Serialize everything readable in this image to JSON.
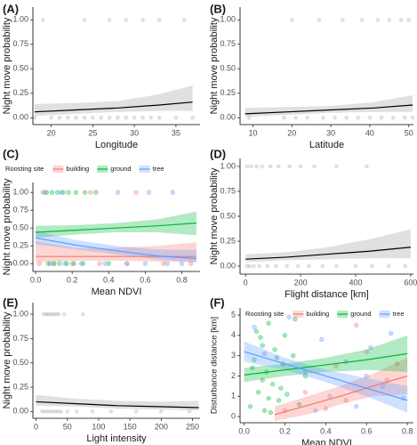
{
  "chart_data": [
    {
      "type": "line",
      "panel_label": "(A)",
      "x_label": "Longitude",
      "y_label": "Night move probability",
      "xlim": [
        17.8,
        37.9
      ],
      "xticks": [
        20,
        25,
        30,
        35
      ],
      "ylim": [
        -0.07,
        1.13
      ],
      "yticks": [
        {
          "value": 0,
          "label": "0.00"
        },
        {
          "value": 0.25,
          "label": "0.25"
        },
        {
          "value": 0.5,
          "label": "0.50"
        },
        {
          "value": 0.75,
          "label": "0.75"
        },
        {
          "value": 1,
          "label": "1.00"
        }
      ],
      "series": [
        {
          "color": "#000000",
          "band_color": "#999999",
          "x": [
            18,
            23,
            28,
            33,
            37
          ],
          "values": [
            0.06,
            0.08,
            0.1,
            0.13,
            0.16
          ],
          "lower": [
            0.02,
            0.04,
            0.06,
            0.07,
            0.07
          ],
          "upper": [
            0.14,
            0.15,
            0.17,
            0.24,
            0.33
          ],
          "point_x": [
            19,
            24,
            27,
            29,
            31,
            33,
            36,
            18,
            20,
            21,
            22,
            23,
            24,
            25,
            26,
            27,
            28,
            29,
            30,
            31,
            32,
            33,
            35,
            37
          ],
          "point_y": [
            1,
            1,
            1,
            1,
            1,
            1,
            1,
            0,
            0,
            0,
            0,
            0,
            0,
            0,
            0,
            0,
            0,
            0,
            0,
            0,
            0,
            0,
            0,
            0
          ]
        }
      ]
    },
    {
      "type": "line",
      "panel_label": "(B)",
      "x_label": "Latitude",
      "y_label": "Night move probability",
      "xlim": [
        6.7,
        51.2
      ],
      "xticks": [
        10,
        20,
        30,
        40,
        50
      ],
      "ylim": [
        -0.07,
        1.13
      ],
      "yticks": [
        {
          "value": 0,
          "label": "0.00"
        },
        {
          "value": 0.25,
          "label": "0.25"
        },
        {
          "value": 0.5,
          "label": "0.50"
        },
        {
          "value": 0.75,
          "label": "0.75"
        },
        {
          "value": 1,
          "label": "1.00"
        }
      ],
      "series": [
        {
          "color": "#000000",
          "band_color": "#999999",
          "x": [
            8,
            19,
            30,
            41,
            51
          ],
          "values": [
            0.04,
            0.06,
            0.08,
            0.1,
            0.13
          ],
          "lower": [
            0.01,
            0.03,
            0.05,
            0.06,
            0.06
          ],
          "upper": [
            0.1,
            0.11,
            0.12,
            0.16,
            0.23
          ],
          "point_x": [
            20,
            27,
            33,
            38,
            42,
            45,
            48,
            50,
            9,
            18,
            21,
            24,
            28,
            31,
            34,
            37,
            40,
            43,
            46,
            49,
            51
          ],
          "point_y": [
            1,
            1,
            1,
            1,
            1,
            1,
            1,
            1,
            0,
            0,
            0,
            0,
            0,
            0,
            0,
            0,
            0,
            0,
            0,
            0,
            0
          ]
        }
      ]
    },
    {
      "type": "line",
      "panel_label": "(C)",
      "x_label": "Mean NDVI",
      "y_label": "Night move probability",
      "legend_title": "Roosting site",
      "xlim": [
        -0.015,
        0.9
      ],
      "xticks": [
        {
          "value": 0,
          "label": "0.0"
        },
        {
          "value": 0.2,
          "label": "0.2"
        },
        {
          "value": 0.4,
          "label": "0.4"
        },
        {
          "value": 0.6,
          "label": "0.6"
        },
        {
          "value": 0.8,
          "label": "0.8"
        }
      ],
      "ylim": [
        -0.11,
        1.14
      ],
      "yticks": [
        {
          "value": 0,
          "label": "0.00"
        },
        {
          "value": 0.25,
          "label": "0.25"
        },
        {
          "value": 0.5,
          "label": "0.50"
        },
        {
          "value": 0.75,
          "label": "0.75"
        },
        {
          "value": 1,
          "label": "1.00"
        }
      ],
      "series": [
        {
          "name": "building",
          "color": "#F8766D",
          "band_color": "#F8766D",
          "x": [
            0,
            0.22,
            0.44,
            0.66,
            0.88
          ],
          "values": [
            0.1,
            0.1,
            0.1,
            0.1,
            0.1
          ],
          "lower": [
            0.02,
            0.04,
            0.04,
            0.03,
            0.02
          ],
          "upper": [
            0.32,
            0.22,
            0.22,
            0.25,
            0.3
          ],
          "point_x": [
            0.05,
            0.3,
            0.55,
            0.02,
            0.1,
            0.2,
            0.35,
            0.5,
            0.7,
            0.85
          ],
          "point_y": [
            1,
            1,
            1,
            0,
            0,
            0,
            0,
            0,
            0,
            0
          ]
        },
        {
          "name": "ground",
          "color": "#00BA38",
          "band_color": "#00BA38",
          "x": [
            0,
            0.22,
            0.44,
            0.66,
            0.88
          ],
          "values": [
            0.44,
            0.47,
            0.5,
            0.53,
            0.57
          ],
          "lower": [
            0.36,
            0.41,
            0.44,
            0.44,
            0.4
          ],
          "upper": [
            0.53,
            0.54,
            0.57,
            0.62,
            0.73
          ],
          "point_x": [
            0.06,
            0.09,
            0.12,
            0.15,
            0.18,
            0.22,
            0.27,
            0.33,
            0.07,
            0.1,
            0.13,
            0.17,
            0.21,
            0.26,
            0.4
          ],
          "point_y": [
            1,
            1,
            1,
            1,
            1,
            1,
            1,
            1,
            0,
            0,
            0,
            0,
            0,
            0,
            0
          ]
        },
        {
          "name": "tree",
          "color": "#619CFF",
          "band_color": "#619CFF",
          "x": [
            0,
            0.22,
            0.44,
            0.66,
            0.88
          ],
          "values": [
            0.36,
            0.26,
            0.18,
            0.11,
            0.07
          ],
          "lower": [
            0.27,
            0.2,
            0.13,
            0.06,
            0.02
          ],
          "upper": [
            0.46,
            0.33,
            0.25,
            0.2,
            0.19
          ],
          "point_x": [
            0.04,
            0.14,
            0.45,
            0.62,
            0.75,
            0.08,
            0.16,
            0.25,
            0.38,
            0.5,
            0.6,
            0.72,
            0.8
          ],
          "point_y": [
            1,
            1,
            1,
            1,
            1,
            0,
            0,
            0,
            0,
            0,
            0,
            0,
            0
          ]
        }
      ]
    },
    {
      "type": "line",
      "panel_label": "(D)",
      "x_label": "Flight distance [km]",
      "y_label": "Night move probability",
      "xlim": [
        -20,
        610
      ],
      "xticks": [
        0,
        200,
        400,
        600
      ],
      "ylim": [
        -0.08,
        1.08
      ],
      "yticks": [
        {
          "value": 0,
          "label": "0.00"
        },
        {
          "value": 0.25,
          "label": "0.25"
        },
        {
          "value": 0.5,
          "label": "0.50"
        },
        {
          "value": 0.75,
          "label": "0.75"
        },
        {
          "value": 1,
          "label": "1.00"
        }
      ],
      "series": [
        {
          "color": "#000000",
          "band_color": "#999999",
          "x": [
            0,
            150,
            300,
            450,
            600
          ],
          "values": [
            0.07,
            0.09,
            0.12,
            0.15,
            0.19
          ],
          "lower": [
            0.04,
            0.06,
            0.07,
            0.08,
            0.08
          ],
          "upper": [
            0.12,
            0.14,
            0.19,
            0.27,
            0.37
          ],
          "point_x": [
            5,
            20,
            40,
            60,
            90,
            120,
            160,
            200,
            250,
            330,
            440,
            5,
            15,
            30,
            50,
            80,
            110,
            150,
            190,
            230,
            280,
            330,
            400,
            460,
            520,
            580
          ],
          "point_y": [
            1,
            1,
            1,
            1,
            1,
            1,
            1,
            1,
            1,
            1,
            1,
            0,
            0,
            0,
            0,
            0,
            0,
            0,
            0,
            0,
            0,
            0,
            0,
            0,
            0,
            0
          ]
        }
      ]
    },
    {
      "type": "line",
      "panel_label": "(E)",
      "x_label": "Light intensity",
      "y_label": "Night move probability",
      "xlim": [
        -5,
        262
      ],
      "xticks": [
        0,
        50,
        100,
        150,
        200,
        250
      ],
      "ylim": [
        -0.07,
        1.12
      ],
      "yticks": [
        {
          "value": 0,
          "label": "0.00"
        },
        {
          "value": 0.25,
          "label": "0.25"
        },
        {
          "value": 0.5,
          "label": "0.50"
        },
        {
          "value": 0.75,
          "label": "0.75"
        },
        {
          "value": 1,
          "label": "1.00"
        }
      ],
      "series": [
        {
          "color": "#000000",
          "band_color": "#999999",
          "x": [
            0,
            65,
            130,
            195,
            260
          ],
          "values": [
            0.1,
            0.08,
            0.06,
            0.05,
            0.04
          ],
          "lower": [
            0.06,
            0.05,
            0.03,
            0.02,
            0.01
          ],
          "upper": [
            0.17,
            0.13,
            0.11,
            0.1,
            0.11
          ],
          "point_x": [
            12,
            16,
            20,
            24,
            28,
            32,
            36,
            45,
            75,
            10,
            15,
            20,
            25,
            30,
            35,
            40,
            50,
            65,
            90,
            120,
            160,
            200,
            245
          ],
          "point_y": [
            1,
            1,
            1,
            1,
            1,
            1,
            1,
            1,
            1,
            0,
            0,
            0,
            0,
            0,
            0,
            0,
            0,
            0,
            0,
            0,
            0,
            0,
            0
          ]
        }
      ]
    },
    {
      "type": "line",
      "panel_label": "(F)",
      "x_label": "Mean NDVI",
      "y_label": "Disturbance distance [km]",
      "legend_title": "Roosting site",
      "xlim": [
        -0.02,
        0.83
      ],
      "xticks": [
        {
          "value": 0,
          "label": "0.0"
        },
        {
          "value": 0.2,
          "label": "0.2"
        },
        {
          "value": 0.4,
          "label": "0.4"
        },
        {
          "value": 0.6,
          "label": "0.6"
        },
        {
          "value": 0.8,
          "label": "0.8"
        }
      ],
      "ylim": [
        -0.3,
        5.35
      ],
      "yticks": [
        0,
        1,
        2,
        3,
        4,
        5
      ],
      "series": [
        {
          "name": "building",
          "color": "#F8766D",
          "band_color": "#F8766D",
          "x": [
            0.15,
            0.31,
            0.47,
            0.63,
            0.8
          ],
          "values": [
            0.1,
            0.55,
            1.0,
            1.5,
            2.0
          ],
          "lower": [
            -0.2,
            0.1,
            0.6,
            1.0,
            1.1
          ],
          "upper": [
            0.5,
            1.0,
            1.5,
            2.1,
            2.9
          ],
          "point_x": [
            0.2,
            0.3,
            0.45,
            0.5,
            0.6,
            0.7,
            0.75,
            0.55,
            0.4
          ],
          "point_y": [
            0.3,
            1.2,
            2.5,
            0.8,
            3.2,
            1.8,
            2.6,
            4.5,
            0.4
          ]
        },
        {
          "name": "ground",
          "color": "#00BA38",
          "band_color": "#00BA38",
          "x": [
            0,
            0.2,
            0.4,
            0.6,
            0.8
          ],
          "values": [
            2.05,
            2.3,
            2.55,
            2.8,
            3.1
          ],
          "lower": [
            1.7,
            2.0,
            2.2,
            2.3,
            2.2
          ],
          "upper": [
            2.4,
            2.6,
            2.9,
            3.3,
            4.0
          ],
          "point_x": [
            0.03,
            0.05,
            0.07,
            0.08,
            0.1,
            0.11,
            0.12,
            0.14,
            0.15,
            0.17,
            0.19,
            0.21,
            0.24,
            0.27,
            0.3,
            0.06,
            0.09,
            0.13,
            0.16,
            0.2,
            0.09,
            0.12,
            0.04,
            0.18,
            0.25
          ],
          "point_y": [
            0.5,
            2.8,
            1.2,
            3.9,
            0.3,
            2.2,
            4.6,
            1.6,
            3.3,
            0.8,
            2.6,
            1.1,
            3.0,
            0.6,
            2.0,
            4.2,
            1.8,
            0.2,
            2.9,
            4.0,
            3.5,
            0.9,
            2.4,
            1.4,
            4.8
          ]
        },
        {
          "name": "tree",
          "color": "#619CFF",
          "band_color": "#619CFF",
          "x": [
            0,
            0.2,
            0.4,
            0.6,
            0.8
          ],
          "values": [
            3.2,
            2.6,
            2.0,
            1.4,
            0.8
          ],
          "lower": [
            2.7,
            2.3,
            1.7,
            1.0,
            0.2
          ],
          "upper": [
            3.7,
            2.9,
            2.3,
            1.9,
            1.5
          ],
          "point_x": [
            0.05,
            0.1,
            0.22,
            0.3,
            0.38,
            0.42,
            0.5,
            0.55,
            0.62,
            0.68,
            0.72,
            0.78,
            0.35,
            0.6
          ],
          "point_y": [
            4.4,
            3.1,
            4.9,
            2.2,
            3.8,
            1.0,
            2.7,
            0.5,
            3.4,
            1.5,
            4.1,
            0.9,
            0.3,
            2.0
          ]
        }
      ]
    }
  ]
}
